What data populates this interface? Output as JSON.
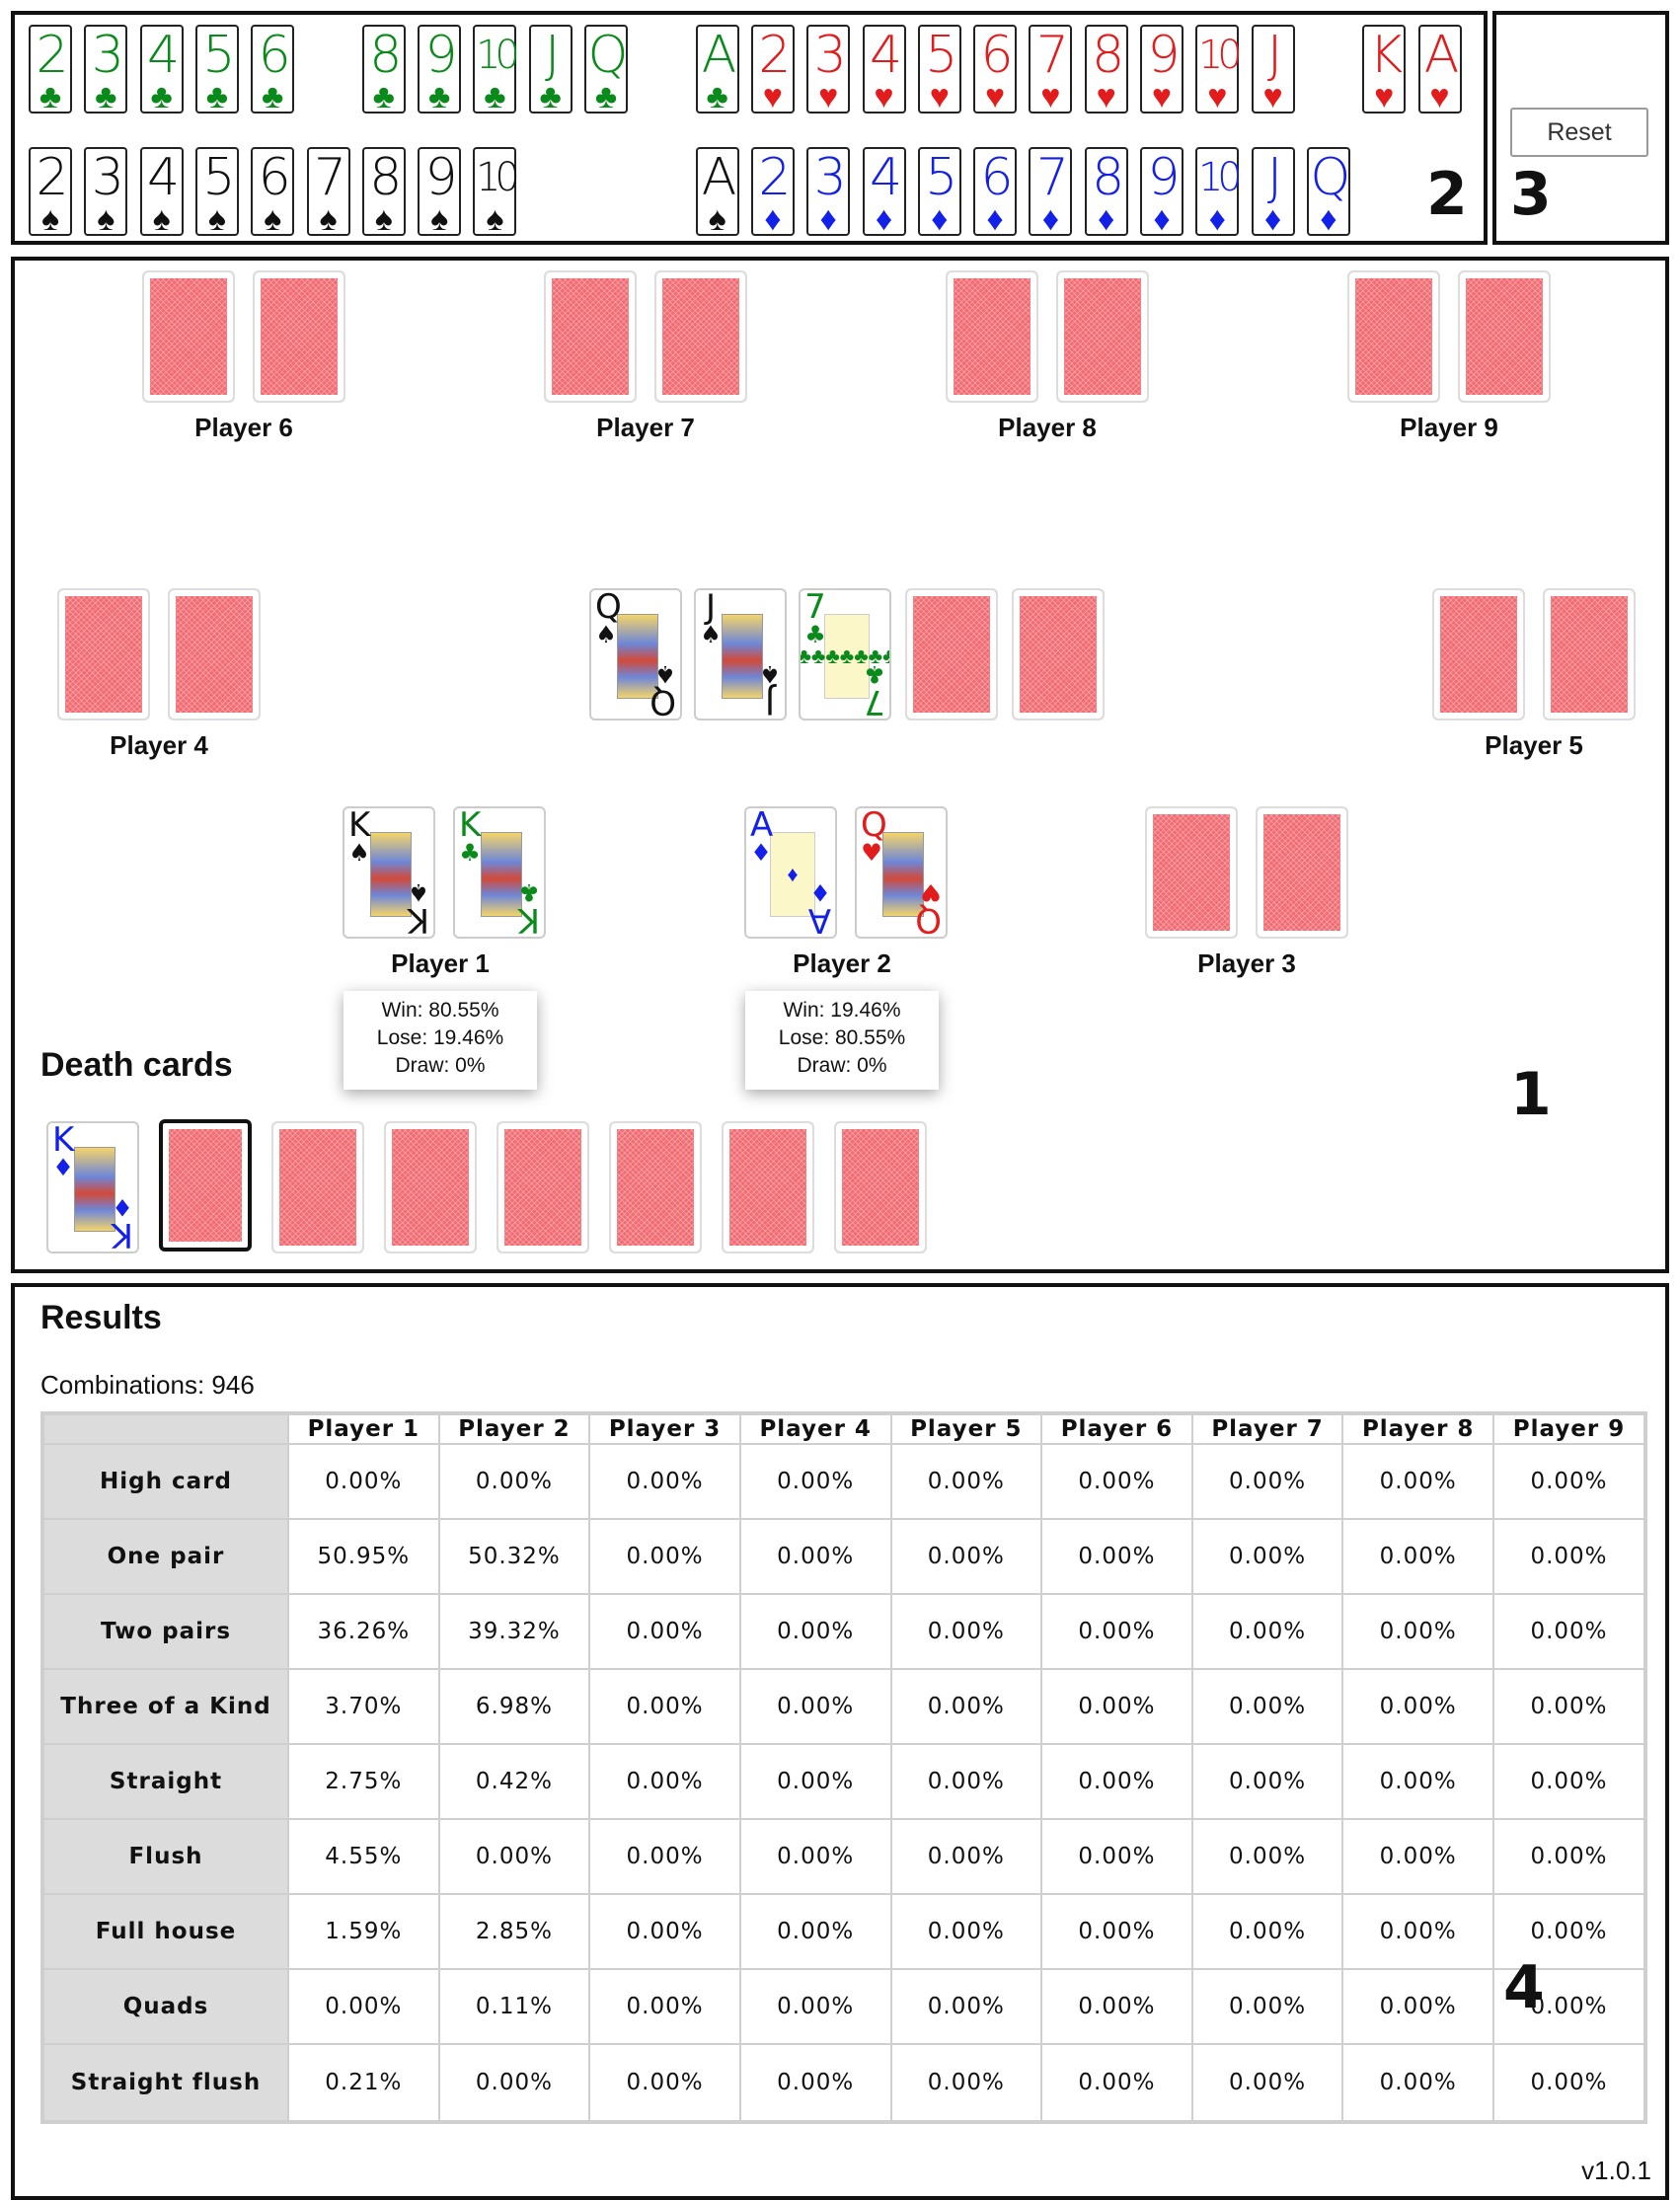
{
  "deck": {
    "badge": "2",
    "rows": [
      [
        {
          "rank": "2",
          "suit": "club",
          "slot": 0
        },
        {
          "rank": "3",
          "suit": "club",
          "slot": 1
        },
        {
          "rank": "4",
          "suit": "club",
          "slot": 2
        },
        {
          "rank": "5",
          "suit": "club",
          "slot": 3
        },
        {
          "rank": "6",
          "suit": "club",
          "slot": 4
        },
        {
          "rank": "8",
          "suit": "club",
          "slot": 6
        },
        {
          "rank": "9",
          "suit": "club",
          "slot": 7
        },
        {
          "rank": "10",
          "suit": "club",
          "slot": 8
        },
        {
          "rank": "J",
          "suit": "club",
          "slot": 9
        },
        {
          "rank": "Q",
          "suit": "club",
          "slot": 10
        },
        {
          "rank": "A",
          "suit": "club",
          "slot": 12
        },
        {
          "rank": "2",
          "suit": "heart",
          "slot": 13
        },
        {
          "rank": "3",
          "suit": "heart",
          "slot": 14
        },
        {
          "rank": "4",
          "suit": "heart",
          "slot": 15
        },
        {
          "rank": "5",
          "suit": "heart",
          "slot": 16
        },
        {
          "rank": "6",
          "suit": "heart",
          "slot": 17
        },
        {
          "rank": "7",
          "suit": "heart",
          "slot": 18
        },
        {
          "rank": "8",
          "suit": "heart",
          "slot": 19
        },
        {
          "rank": "9",
          "suit": "heart",
          "slot": 20
        },
        {
          "rank": "10",
          "suit": "heart",
          "slot": 21
        },
        {
          "rank": "J",
          "suit": "heart",
          "slot": 22
        },
        {
          "rank": "K",
          "suit": "heart",
          "slot": 24
        },
        {
          "rank": "A",
          "suit": "heart",
          "slot": 25
        }
      ],
      [
        {
          "rank": "2",
          "suit": "spade",
          "slot": 0
        },
        {
          "rank": "3",
          "suit": "spade",
          "slot": 1
        },
        {
          "rank": "4",
          "suit": "spade",
          "slot": 2
        },
        {
          "rank": "5",
          "suit": "spade",
          "slot": 3
        },
        {
          "rank": "6",
          "suit": "spade",
          "slot": 4
        },
        {
          "rank": "7",
          "suit": "spade",
          "slot": 5
        },
        {
          "rank": "8",
          "suit": "spade",
          "slot": 6
        },
        {
          "rank": "9",
          "suit": "spade",
          "slot": 7
        },
        {
          "rank": "10",
          "suit": "spade",
          "slot": 8
        },
        {
          "rank": "A",
          "suit": "spade",
          "slot": 12
        },
        {
          "rank": "2",
          "suit": "diamond",
          "slot": 13
        },
        {
          "rank": "3",
          "suit": "diamond",
          "slot": 14
        },
        {
          "rank": "4",
          "suit": "diamond",
          "slot": 15
        },
        {
          "rank": "5",
          "suit": "diamond",
          "slot": 16
        },
        {
          "rank": "6",
          "suit": "diamond",
          "slot": 17
        },
        {
          "rank": "7",
          "suit": "diamond",
          "slot": 18
        },
        {
          "rank": "8",
          "suit": "diamond",
          "slot": 19
        },
        {
          "rank": "9",
          "suit": "diamond",
          "slot": 20
        },
        {
          "rank": "10",
          "suit": "diamond",
          "slot": 21
        },
        {
          "rank": "J",
          "suit": "diamond",
          "slot": 22
        },
        {
          "rank": "Q",
          "suit": "diamond",
          "slot": 23
        }
      ]
    ]
  },
  "controls": {
    "badge": "3",
    "reset_label": "Reset"
  },
  "table": {
    "badge": "1",
    "players": {
      "p6": {
        "label": "Player 6"
      },
      "p7": {
        "label": "Player 7"
      },
      "p8": {
        "label": "Player 8"
      },
      "p9": {
        "label": "Player 9"
      },
      "p4": {
        "label": "Player 4"
      },
      "p5": {
        "label": "Player 5"
      },
      "p1": {
        "label": "Player 1",
        "cards": [
          {
            "rank": "K",
            "suit": "spade"
          },
          {
            "rank": "K",
            "suit": "club"
          }
        ],
        "win": "Win: 80.55%",
        "lose": "Lose: 19.46%",
        "draw": "Draw: 0%"
      },
      "p2": {
        "label": "Player 2",
        "cards": [
          {
            "rank": "A",
            "suit": "diamond"
          },
          {
            "rank": "Q",
            "suit": "heart"
          }
        ],
        "win": "Win: 19.46%",
        "lose": "Lose: 80.55%",
        "draw": "Draw: 0%"
      },
      "p3": {
        "label": "Player 3"
      }
    },
    "board": [
      {
        "rank": "Q",
        "suit": "spade"
      },
      {
        "rank": "J",
        "suit": "spade"
      },
      {
        "rank": "7",
        "suit": "club"
      }
    ],
    "death_title": "Death cards",
    "death_cards": [
      {
        "rank": "K",
        "suit": "diamond"
      }
    ]
  },
  "results": {
    "badge": "4",
    "title": "Results",
    "combinations": "Combinations: 946",
    "columns": [
      "Player 1",
      "Player 2",
      "Player 3",
      "Player 4",
      "Player 5",
      "Player 6",
      "Player 7",
      "Player 8",
      "Player 9"
    ],
    "rows": [
      {
        "name": "High card",
        "values": [
          "0.00%",
          "0.00%",
          "0.00%",
          "0.00%",
          "0.00%",
          "0.00%",
          "0.00%",
          "0.00%",
          "0.00%"
        ]
      },
      {
        "name": "One pair",
        "values": [
          "50.95%",
          "50.32%",
          "0.00%",
          "0.00%",
          "0.00%",
          "0.00%",
          "0.00%",
          "0.00%",
          "0.00%"
        ]
      },
      {
        "name": "Two pairs",
        "values": [
          "36.26%",
          "39.32%",
          "0.00%",
          "0.00%",
          "0.00%",
          "0.00%",
          "0.00%",
          "0.00%",
          "0.00%"
        ]
      },
      {
        "name": "Three of a Kind",
        "values": [
          "3.70%",
          "6.98%",
          "0.00%",
          "0.00%",
          "0.00%",
          "0.00%",
          "0.00%",
          "0.00%",
          "0.00%"
        ]
      },
      {
        "name": "Straight",
        "values": [
          "2.75%",
          "0.42%",
          "0.00%",
          "0.00%",
          "0.00%",
          "0.00%",
          "0.00%",
          "0.00%",
          "0.00%"
        ]
      },
      {
        "name": "Flush",
        "values": [
          "4.55%",
          "0.00%",
          "0.00%",
          "0.00%",
          "0.00%",
          "0.00%",
          "0.00%",
          "0.00%",
          "0.00%"
        ]
      },
      {
        "name": "Full house",
        "values": [
          "1.59%",
          "2.85%",
          "0.00%",
          "0.00%",
          "0.00%",
          "0.00%",
          "0.00%",
          "0.00%",
          "0.00%"
        ]
      },
      {
        "name": "Quads",
        "values": [
          "0.00%",
          "0.11%",
          "0.00%",
          "0.00%",
          "0.00%",
          "0.00%",
          "0.00%",
          "0.00%",
          "0.00%"
        ]
      },
      {
        "name": "Straight flush",
        "values": [
          "0.21%",
          "0.00%",
          "0.00%",
          "0.00%",
          "0.00%",
          "0.00%",
          "0.00%",
          "0.00%",
          "0.00%"
        ]
      }
    ],
    "version": "v1.0.1"
  }
}
